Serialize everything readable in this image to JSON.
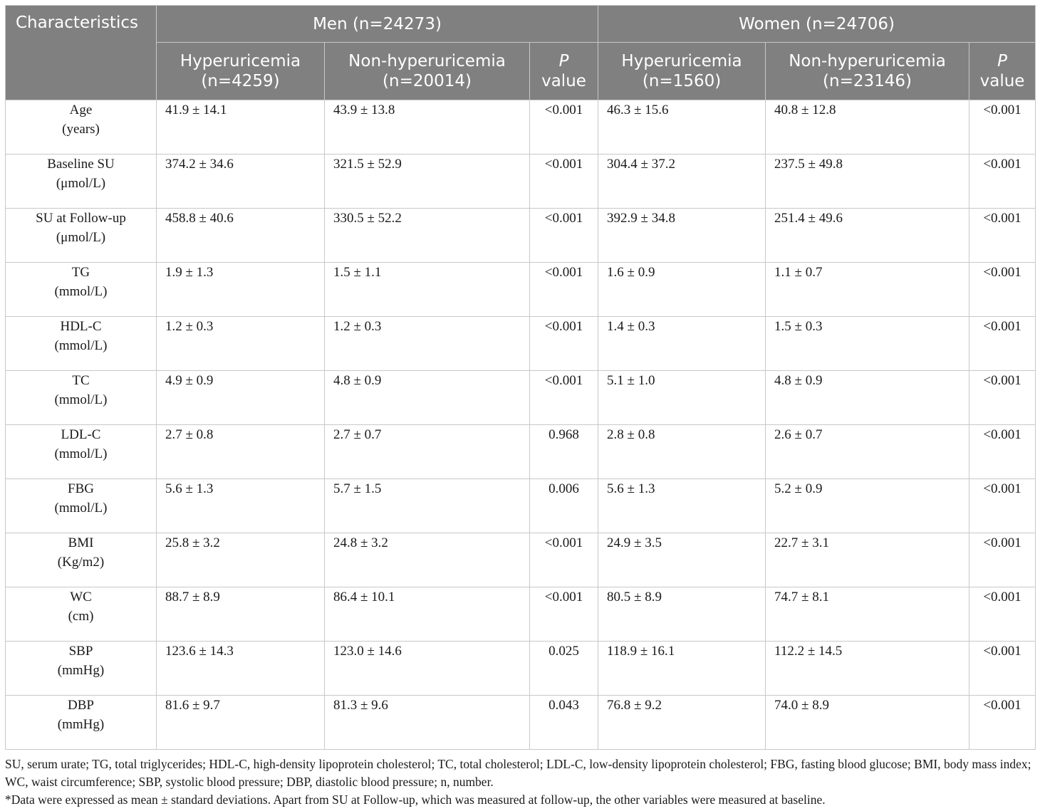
{
  "header": {
    "characteristics": "Characteristics",
    "men": "Men (n=24273)",
    "women": "Women (n=24706)",
    "men_hyper": "Hyperuricemia (n=4259)",
    "men_nonhyper": "Non-hyperuricemia (n=20014)",
    "women_hyper": "Hyperuricemia (n=1560)",
    "women_nonhyper": "Non-hyperuricemia (n=23146)",
    "p_label": "P",
    "value_label": "value"
  },
  "rows": [
    {
      "name": "Age",
      "unit": "(years)",
      "men_h": "41.9 ± 14.1",
      "men_n": "43.9 ± 13.8",
      "men_p": "<0.001",
      "women_h": "46.3 ± 15.6",
      "women_n": "40.8 ± 12.8",
      "women_p": "<0.001"
    },
    {
      "name": "Baseline SU",
      "unit": "(μmol/L)",
      "men_h": "374.2 ± 34.6",
      "men_n": "321.5 ± 52.9",
      "men_p": "<0.001",
      "women_h": "304.4 ± 37.2",
      "women_n": "237.5 ± 49.8",
      "women_p": "<0.001"
    },
    {
      "name": "SU at Follow-up",
      "unit": "(μmol/L)",
      "men_h": "458.8 ± 40.6",
      "men_n": "330.5 ± 52.2",
      "men_p": "<0.001",
      "women_h": "392.9 ± 34.8",
      "women_n": "251.4 ± 49.6",
      "women_p": "<0.001"
    },
    {
      "name": "TG",
      "unit": "(mmol/L)",
      "men_h": "1.9 ± 1.3",
      "men_n": "1.5 ± 1.1",
      "men_p": "<0.001",
      "women_h": "1.6 ± 0.9",
      "women_n": "1.1 ± 0.7",
      "women_p": "<0.001"
    },
    {
      "name": "HDL-C",
      "unit": "(mmol/L)",
      "men_h": "1.2 ± 0.3",
      "men_n": "1.2 ± 0.3",
      "men_p": "<0.001",
      "women_h": "1.4 ± 0.3",
      "women_n": "1.5 ± 0.3",
      "women_p": "<0.001"
    },
    {
      "name": "TC",
      "unit": "(mmol/L)",
      "men_h": "4.9 ± 0.9",
      "men_n": "4.8 ± 0.9",
      "men_p": "<0.001",
      "women_h": "5.1 ± 1.0",
      "women_n": "4.8 ± 0.9",
      "women_p": "<0.001"
    },
    {
      "name": "LDL-C",
      "unit": "(mmol/L)",
      "men_h": "2.7 ± 0.8",
      "men_n": "2.7 ± 0.7",
      "men_p": "0.968",
      "women_h": "2.8 ± 0.8",
      "women_n": "2.6 ± 0.7",
      "women_p": "<0.001"
    },
    {
      "name": "FBG",
      "unit": "(mmol/L)",
      "men_h": "5.6 ± 1.3",
      "men_n": "5.7 ± 1.5",
      "men_p": "0.006",
      "women_h": "5.6 ± 1.3",
      "women_n": "5.2 ± 0.9",
      "women_p": "<0.001"
    },
    {
      "name": "BMI",
      "unit": "(Kg/m2)",
      "men_h": "25.8 ± 3.2",
      "men_n": "24.8 ± 3.2",
      "men_p": "<0.001",
      "women_h": "24.9 ± 3.5",
      "women_n": "22.7 ± 3.1",
      "women_p": "<0.001"
    },
    {
      "name": "WC",
      "unit": "(cm)",
      "men_h": "88.7 ± 8.9",
      "men_n": "86.4 ± 10.1",
      "men_p": "<0.001",
      "women_h": "80.5 ± 8.9",
      "women_n": "74.7 ± 8.1",
      "women_p": "<0.001"
    },
    {
      "name": "SBP",
      "unit": "(mmHg)",
      "men_h": "123.6 ± 14.3",
      "men_n": "123.0 ± 14.6",
      "men_p": "0.025",
      "women_h": "118.9 ± 16.1",
      "women_n": "112.2 ± 14.5",
      "women_p": "<0.001"
    },
    {
      "name": "DBP",
      "unit": "(mmHg)",
      "men_h": "81.6 ± 9.7",
      "men_n": "81.3 ± 9.6",
      "men_p": "0.043",
      "women_h": "76.8 ± 9.2",
      "women_n": "74.0 ± 8.9",
      "women_p": "<0.001"
    }
  ],
  "footnotes": {
    "abbreviations": "SU, serum urate; TG, total triglycerides; HDL-C, high-density lipoprotein cholesterol; TC, total cholesterol; LDL-C, low-density lipoprotein cholesterol; FBG, fasting blood glucose; BMI, body mass index; WC, waist circumference; SBP, systolic blood pressure; DBP, diastolic blood pressure; n, number.",
    "note": "*Data were expressed as mean ± standard deviations. Apart from SU at Follow-up, which was measured at follow-up, the other variables were measured at baseline."
  }
}
